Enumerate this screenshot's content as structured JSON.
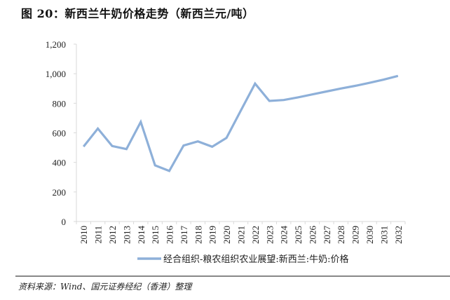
{
  "chart_data": {
    "type": "line",
    "title": "图 20：新西兰牛奶价格走势（新西兰元/吨）",
    "xlabel": "",
    "ylabel": "",
    "categories": [
      "2010",
      "2011",
      "2012",
      "2013",
      "2014",
      "2015",
      "2016",
      "2017",
      "2018",
      "2019",
      "2020",
      "2021",
      "2022",
      "2023",
      "2024",
      "2025",
      "2026",
      "2027",
      "2028",
      "2029",
      "2030",
      "2031",
      "2032"
    ],
    "series": [
      {
        "name": "经合组织-粮农组织农业展望:新西兰:牛奶:价格",
        "color": "#8eb0d9",
        "values": [
          507,
          629,
          511,
          490,
          674,
          380,
          342,
          514,
          542,
          506,
          566,
          750,
          933,
          816,
          822,
          840,
          860,
          880,
          900,
          918,
          938,
          960,
          985
        ]
      }
    ],
    "ylim": [
      0,
      1200
    ],
    "yticks": [
      0,
      200,
      400,
      600,
      800,
      1000,
      1200
    ],
    "ytick_labels": [
      "0",
      "200",
      "400",
      "600",
      "800",
      "1,000",
      "1,200"
    ],
    "grid": false,
    "legend": "bottom"
  },
  "source": "资料来源：Wind、国元证券经纪（香港）整理"
}
